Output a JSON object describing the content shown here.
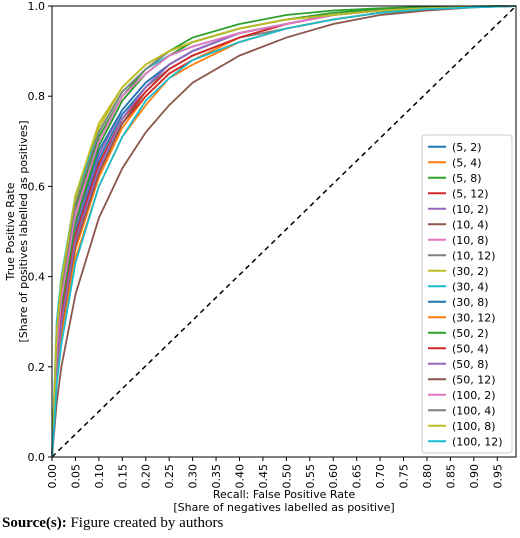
{
  "chart_data": {
    "type": "line",
    "x_label": [
      "Recall: False Positive Rate",
      "[Share of negatives labelled as positive]"
    ],
    "y_label": [
      "True Positive Rate",
      "[Share of positives labelled as positives]"
    ],
    "x": [
      0,
      0.01,
      0.02,
      0.05,
      0.1,
      0.15,
      0.2,
      0.25,
      0.3,
      0.4,
      0.5,
      0.6,
      0.7,
      0.8,
      0.9,
      0.99
    ],
    "xlim": [
      0,
      0.99
    ],
    "ylim": [
      0,
      1
    ],
    "xticks": [
      {
        "value": 0,
        "label": "0.00"
      },
      {
        "value": 0.05,
        "label": "0.05"
      },
      {
        "value": 0.1,
        "label": "0.10"
      },
      {
        "value": 0.15,
        "label": "0.15"
      },
      {
        "value": 0.2,
        "label": "0.20"
      },
      {
        "value": 0.25,
        "label": "0.25"
      },
      {
        "value": 0.3,
        "label": "0.30"
      },
      {
        "value": 0.35,
        "label": "0.35"
      },
      {
        "value": 0.4,
        "label": "0.40"
      },
      {
        "value": 0.45,
        "label": "0.45"
      },
      {
        "value": 0.5,
        "label": "0.50"
      },
      {
        "value": 0.55,
        "label": "0.55"
      },
      {
        "value": 0.6,
        "label": "0.60"
      },
      {
        "value": 0.65,
        "label": "0.65"
      },
      {
        "value": 0.7,
        "label": "0.70"
      },
      {
        "value": 0.75,
        "label": "0.75"
      },
      {
        "value": 0.8,
        "label": "0.80"
      },
      {
        "value": 0.85,
        "label": "0.85"
      },
      {
        "value": 0.9,
        "label": "0.90"
      },
      {
        "value": 0.95,
        "label": "0.95"
      }
    ],
    "yticks": [
      {
        "value": 0,
        "label": "0.0"
      },
      0.2,
      0.4,
      0.6,
      0.8,
      {
        "value": 1,
        "label": "1.0"
      }
    ],
    "legend": "lower right",
    "series": [
      {
        "name": "(5, 2)",
        "color": "#1f77b4",
        "values": [
          0,
          0.22,
          0.32,
          0.5,
          0.66,
          0.76,
          0.82,
          0.87,
          0.9,
          0.94,
          0.96,
          0.98,
          0.99,
          0.995,
          0.998,
          1
        ]
      },
      {
        "name": "(5, 4)",
        "color": "#ff7f0e",
        "values": [
          0,
          0.18,
          0.28,
          0.46,
          0.62,
          0.73,
          0.8,
          0.85,
          0.88,
          0.93,
          0.96,
          0.98,
          0.99,
          0.995,
          0.998,
          1
        ]
      },
      {
        "name": "(5, 8)",
        "color": "#2ca02c",
        "values": [
          0,
          0.26,
          0.37,
          0.55,
          0.71,
          0.8,
          0.86,
          0.9,
          0.93,
          0.96,
          0.98,
          0.99,
          0.995,
          0.998,
          0.999,
          1
        ]
      },
      {
        "name": "(5, 12)",
        "color": "#d62728",
        "values": [
          0,
          0.2,
          0.3,
          0.47,
          0.63,
          0.74,
          0.8,
          0.85,
          0.88,
          0.92,
          0.95,
          0.97,
          0.985,
          0.993,
          0.998,
          1
        ]
      },
      {
        "name": "(10, 2)",
        "color": "#9467bd",
        "values": [
          0,
          0.23,
          0.33,
          0.51,
          0.67,
          0.77,
          0.83,
          0.87,
          0.9,
          0.94,
          0.96,
          0.98,
          0.99,
          0.995,
          0.998,
          1
        ]
      },
      {
        "name": "(10, 4)",
        "color": "#8c564b",
        "values": [
          0,
          0.19,
          0.29,
          0.47,
          0.63,
          0.74,
          0.81,
          0.86,
          0.89,
          0.93,
          0.96,
          0.98,
          0.99,
          0.995,
          0.998,
          1
        ]
      },
      {
        "name": "(10, 8)",
        "color": "#e377c2",
        "values": [
          0,
          0.25,
          0.35,
          0.53,
          0.69,
          0.79,
          0.85,
          0.89,
          0.91,
          0.94,
          0.96,
          0.98,
          0.99,
          0.995,
          0.998,
          1
        ]
      },
      {
        "name": "(10, 12)",
        "color": "#7f7f7f",
        "values": [
          0,
          0.21,
          0.31,
          0.49,
          0.65,
          0.75,
          0.82,
          0.86,
          0.89,
          0.93,
          0.95,
          0.97,
          0.985,
          0.993,
          0.998,
          1
        ]
      },
      {
        "name": "(30, 2)",
        "color": "#bcbd22",
        "values": [
          0,
          0.27,
          0.38,
          0.57,
          0.73,
          0.82,
          0.87,
          0.9,
          0.92,
          0.95,
          0.97,
          0.98,
          0.99,
          0.995,
          0.998,
          1
        ]
      },
      {
        "name": "(30, 4)",
        "color": "#17becf",
        "values": [
          0,
          0.3,
          0.4,
          0.58,
          0.72,
          0.81,
          0.86,
          0.89,
          0.91,
          0.94,
          0.96,
          0.98,
          0.99,
          0.995,
          0.998,
          1
        ]
      },
      {
        "name": "(30, 8)",
        "color": "#1f77b4",
        "values": [
          0,
          0.24,
          0.34,
          0.52,
          0.68,
          0.77,
          0.83,
          0.87,
          0.9,
          0.94,
          0.96,
          0.98,
          0.99,
          0.995,
          0.998,
          1
        ]
      },
      {
        "name": "(30, 12)",
        "color": "#ff7f0e",
        "values": [
          0,
          0.17,
          0.26,
          0.44,
          0.6,
          0.71,
          0.78,
          0.84,
          0.87,
          0.92,
          0.95,
          0.97,
          0.985,
          0.993,
          0.998,
          1
        ]
      },
      {
        "name": "(50, 2)",
        "color": "#2ca02c",
        "values": [
          0,
          0.22,
          0.33,
          0.52,
          0.69,
          0.79,
          0.85,
          0.89,
          0.92,
          0.95,
          0.97,
          0.985,
          0.993,
          0.997,
          0.999,
          1
        ]
      },
      {
        "name": "(50, 4)",
        "color": "#d62728",
        "values": [
          0,
          0.21,
          0.31,
          0.49,
          0.65,
          0.75,
          0.81,
          0.86,
          0.89,
          0.93,
          0.96,
          0.98,
          0.99,
          0.995,
          0.998,
          1
        ]
      },
      {
        "name": "(50, 8)",
        "color": "#9467bd",
        "values": [
          0,
          0.2,
          0.3,
          0.48,
          0.64,
          0.75,
          0.82,
          0.87,
          0.9,
          0.94,
          0.96,
          0.98,
          0.99,
          0.995,
          0.998,
          1
        ]
      },
      {
        "name": "(50, 12)",
        "color": "#8c564b",
        "values": [
          0,
          0.12,
          0.2,
          0.36,
          0.53,
          0.64,
          0.72,
          0.78,
          0.83,
          0.89,
          0.93,
          0.96,
          0.98,
          0.99,
          0.997,
          1
        ]
      },
      {
        "name": "(100, 2)",
        "color": "#e377c2",
        "values": [
          0,
          0.24,
          0.35,
          0.54,
          0.7,
          0.8,
          0.85,
          0.89,
          0.91,
          0.94,
          0.96,
          0.98,
          0.99,
          0.995,
          0.998,
          1
        ]
      },
      {
        "name": "(100, 4)",
        "color": "#7f7f7f",
        "values": [
          0,
          0.27,
          0.38,
          0.56,
          0.72,
          0.81,
          0.86,
          0.9,
          0.92,
          0.95,
          0.97,
          0.98,
          0.99,
          0.995,
          0.998,
          1
        ]
      },
      {
        "name": "(100, 8)",
        "color": "#bcbd22",
        "values": [
          0,
          0.28,
          0.39,
          0.58,
          0.74,
          0.82,
          0.87,
          0.9,
          0.92,
          0.95,
          0.97,
          0.98,
          0.99,
          0.995,
          0.998,
          1
        ]
      },
      {
        "name": "(100, 12)",
        "color": "#17becf",
        "values": [
          0,
          0.16,
          0.25,
          0.43,
          0.6,
          0.71,
          0.79,
          0.84,
          0.88,
          0.92,
          0.95,
          0.97,
          0.985,
          0.993,
          0.997,
          1
        ]
      }
    ]
  },
  "caption": {
    "label": "Source(s):",
    "text": "Figure created by authors"
  }
}
